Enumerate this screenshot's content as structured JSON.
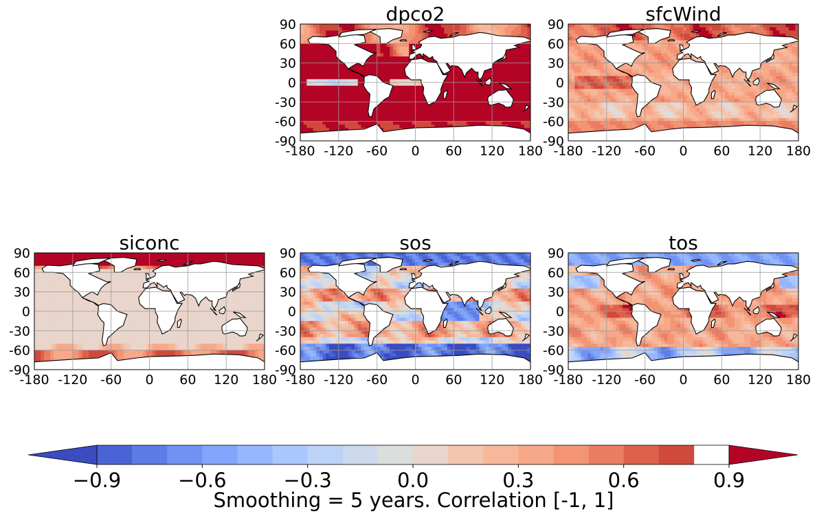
{
  "figure": {
    "colorbar_label": "Smoothing = 5 years. Correlation [-1, 1]",
    "colorbar_ticks": [
      "−0.9",
      "−0.6",
      "−0.3",
      "0.0",
      "0.3",
      "0.6",
      "0.9"
    ],
    "colorbar_levels": [
      -1.0,
      -0.9,
      -0.8,
      -0.7,
      -0.6,
      -0.5,
      -0.4,
      -0.3,
      -0.2,
      -0.1,
      0.0,
      0.1,
      0.2,
      0.3,
      0.4,
      0.5,
      0.6,
      0.7,
      0.8,
      0.9,
      1.0
    ],
    "colorbar_colors": [
      "#3a4cc0",
      "#4b64d5",
      "#5d7ce6",
      "#7093f3",
      "#82a6fb",
      "#96b7ff",
      "#aac7fd",
      "#bcd2f7",
      "#cdd9ec",
      "#dcdddd",
      "#e9d5cb",
      "#f3c6b0",
      "#f6b79b",
      "#f7a889",
      "#f39475",
      "#eb7d62",
      "#de614d",
      "#cf4a3c",
      "#b40426"
    ],
    "colorbar_extend": "both"
  },
  "chart_data": [
    {
      "type": "heatmap",
      "title": "dpco2",
      "xticks": [
        "-180",
        "-120",
        "-60",
        "0",
        "60",
        "120",
        "180"
      ],
      "yticks": [
        "90",
        "60",
        "30",
        "0",
        "-30",
        "-60",
        "-90"
      ],
      "xlim": [
        -180,
        180
      ],
      "ylim": [
        -90,
        90
      ],
      "grid": true,
      "ocean_pattern": "mostly strongly positive (0.9 to 1.0) across global ocean; weaker/negative band in eastern equatorial Pacific and parts of North Atlantic and Arctic"
    },
    {
      "type": "heatmap",
      "title": "sfcWind",
      "xticks": [
        "-180",
        "-120",
        "-60",
        "0",
        "60",
        "120",
        "180"
      ],
      "yticks": [
        "90",
        "60",
        "30",
        "0",
        "-30",
        "-60",
        "-90"
      ],
      "xlim": [
        -180,
        180
      ],
      "ylim": [
        -90,
        90
      ],
      "grid": true,
      "ocean_pattern": "moderately positive (0.2 to 0.7) almost everywhere; strongest in tropical Pacific and Arctic"
    },
    {
      "type": "heatmap",
      "title": "siconc",
      "xticks": [
        "-180",
        "-120",
        "-60",
        "0",
        "60",
        "120",
        "180"
      ],
      "yticks": [
        "90",
        "60",
        "30",
        "0",
        "-30",
        "-60",
        "-90"
      ],
      "xlim": [
        -180,
        180
      ],
      "ylim": [
        -90,
        90
      ],
      "grid": true,
      "ocean_pattern": "strongly positive in Arctic and Southern Ocean sea-ice zones; near zero elsewhere"
    },
    {
      "type": "heatmap",
      "title": "sos",
      "xticks": [
        "-180",
        "-120",
        "-60",
        "0",
        "60",
        "120",
        "180"
      ],
      "yticks": [
        "90",
        "60",
        "30",
        "0",
        "-30",
        "-60",
        "-90"
      ],
      "xlim": [
        -180,
        180
      ],
      "ylim": [
        -90,
        90
      ],
      "grid": true,
      "ocean_pattern": "mixed; strongly negative in Southern Ocean, Arctic and tropical Indian Ocean; positive bands in subtropical gyres"
    },
    {
      "type": "heatmap",
      "title": "tos",
      "xticks": [
        "-180",
        "-120",
        "-60",
        "0",
        "60",
        "120",
        "180"
      ],
      "yticks": [
        "90",
        "60",
        "30",
        "0",
        "-30",
        "-60",
        "-90"
      ],
      "xlim": [
        -180,
        180
      ],
      "ylim": [
        -90,
        90
      ],
      "grid": true,
      "ocean_pattern": "mostly weakly to moderately positive; negative in Arctic, Southern Ocean and North Pacific"
    }
  ]
}
